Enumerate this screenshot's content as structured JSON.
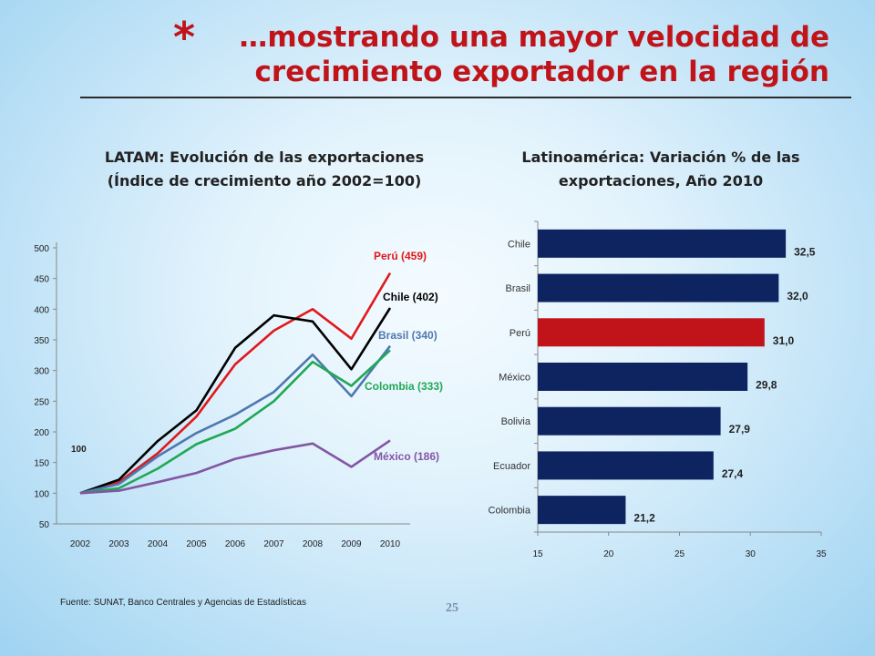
{
  "slide": {
    "bullet": "*",
    "title": "…mostrando una mayor velocidad de crecimiento exportador en la región",
    "source": "Fuente: SUNAT, Banco Centrales y Agencias de Estadísticas",
    "page_number": "25"
  },
  "chart_data": [
    {
      "type": "line",
      "title": "LATAM: Evolución de las exportaciones (Índice de crecimiento año 2002=100)",
      "x": [
        "2002",
        "2003",
        "2004",
        "2005",
        "2006",
        "2007",
        "2008",
        "2009",
        "2010"
      ],
      "ylim": [
        50,
        500
      ],
      "yticks": [
        50,
        100,
        150,
        200,
        250,
        300,
        350,
        400,
        450,
        500
      ],
      "annotation": "100",
      "series": [
        {
          "name": "Perú (459)",
          "color": "#e0191b",
          "values": [
            100,
            118,
            165,
            225,
            310,
            365,
            400,
            352,
            459
          ]
        },
        {
          "name": "Chile (402)",
          "color": "#000000",
          "values": [
            100,
            122,
            185,
            235,
            337,
            390,
            380,
            302,
            402
          ]
        },
        {
          "name": "Brasil (340)",
          "color": "#4f78b0",
          "values": [
            100,
            115,
            160,
            198,
            228,
            265,
            326,
            258,
            340
          ]
        },
        {
          "name": "Colombia (333)",
          "color": "#20a855",
          "values": [
            100,
            108,
            140,
            180,
            205,
            250,
            314,
            275,
            333
          ]
        },
        {
          "name": "México (186)",
          "color": "#8256a3",
          "values": [
            100,
            104,
            118,
            133,
            156,
            170,
            181,
            143,
            186
          ]
        }
      ]
    },
    {
      "type": "bar",
      "orientation": "horizontal",
      "title": "Latinoamérica: Variación % de las exportaciones, Año 2010",
      "categories": [
        "Chile",
        "Brasil",
        "Perú",
        "México",
        "Bolivia",
        "Ecuador",
        "Colombia"
      ],
      "values": [
        32.5,
        32.0,
        31.0,
        29.8,
        27.9,
        27.4,
        21.2
      ],
      "value_labels": [
        "32,5",
        "32,0",
        "31,0",
        "29,8",
        "27,9",
        "27,4",
        "21,2"
      ],
      "colors": [
        "#0d2461",
        "#0d2461",
        "#c0141a",
        "#0d2461",
        "#0d2461",
        "#0d2461",
        "#0d2461"
      ],
      "xlim": [
        15,
        35
      ],
      "xticks": [
        15,
        20,
        25,
        30,
        35
      ]
    }
  ]
}
